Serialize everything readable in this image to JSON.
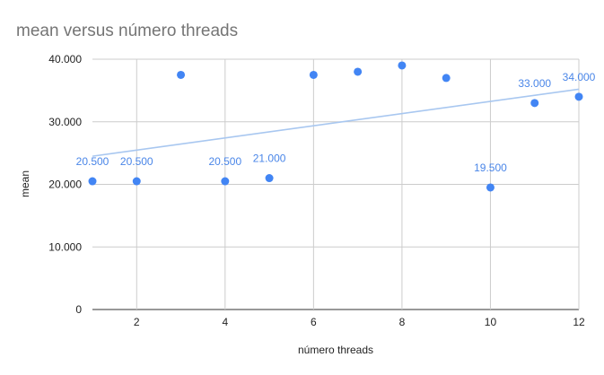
{
  "chart_data": {
    "type": "scatter",
    "title": "mean versus número threads",
    "xlabel": "número threads",
    "ylabel": "mean",
    "xlim": [
      1,
      12
    ],
    "ylim": [
      0,
      40000
    ],
    "x_ticks": [
      2,
      4,
      6,
      8,
      10,
      12
    ],
    "y_ticks": [
      0,
      10000,
      20000,
      30000,
      40000
    ],
    "y_tick_labels": [
      "0",
      "10.000",
      "20.000",
      "30.000",
      "40.000"
    ],
    "grid": true,
    "legend": "none",
    "series": [
      {
        "x": [
          1,
          2,
          3,
          4,
          5,
          6,
          7,
          8,
          9,
          10,
          11,
          12
        ],
        "y": [
          20500,
          20500,
          37500,
          20500,
          21000,
          37500,
          38000,
          39000,
          37000,
          19500,
          33000,
          34000
        ],
        "labels": [
          "20.500",
          "20.500",
          "",
          "20.500",
          "21.000",
          "",
          "",
          "",
          "",
          "19.500",
          "33.000",
          "34.000"
        ],
        "color": "#4285f4"
      }
    ],
    "trendline": {
      "x": [
        1,
        12
      ],
      "y": [
        24500,
        35200
      ],
      "color": "#a8c7f0"
    }
  }
}
